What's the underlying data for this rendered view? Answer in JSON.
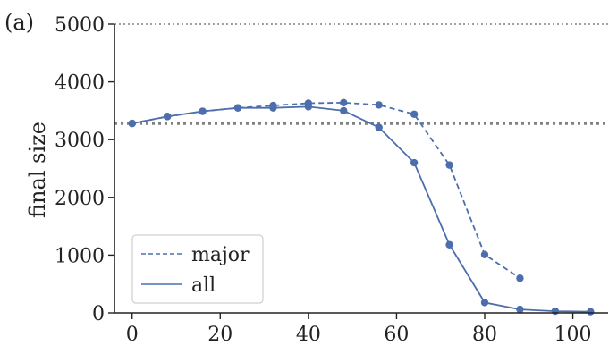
{
  "chart_data": {
    "type": "line",
    "panel_label": "(a)",
    "title": "",
    "xlabel": "",
    "ylabel": "final size",
    "xlim": [
      -4,
      108
    ],
    "ylim": [
      0,
      5000
    ],
    "xticks": [
      "0",
      "20",
      "40",
      "60",
      "80",
      "100"
    ],
    "yticks": [
      "0",
      "1000",
      "2000",
      "3000",
      "4000",
      "5000"
    ],
    "grid": false,
    "legend_position": "bottom-left",
    "reference_lines": [
      {
        "y": 3280,
        "style": "dotted",
        "color": "#808080"
      },
      {
        "y": 5000,
        "style": "dotted",
        "color": "#808080"
      }
    ],
    "series": [
      {
        "name": "major",
        "style": "dashed",
        "color": "#4c6ead",
        "points": [
          {
            "x": 0,
            "y": 3280
          },
          {
            "x": 8,
            "y": 3400
          },
          {
            "x": 16,
            "y": 3490
          },
          {
            "x": 24,
            "y": 3550
          },
          {
            "x": 32,
            "y": 3590
          },
          {
            "x": 40,
            "y": 3630
          },
          {
            "x": 48,
            "y": 3640
          },
          {
            "x": 56,
            "y": 3600
          },
          {
            "x": 64,
            "y": 3440
          },
          {
            "x": 72,
            "y": 2560
          },
          {
            "x": 80,
            "y": 1010
          },
          {
            "x": 88,
            "y": 600
          }
        ]
      },
      {
        "name": "all",
        "style": "solid",
        "color": "#4c6ead",
        "points": [
          {
            "x": 0,
            "y": 3280
          },
          {
            "x": 8,
            "y": 3400
          },
          {
            "x": 16,
            "y": 3490
          },
          {
            "x": 24,
            "y": 3550
          },
          {
            "x": 32,
            "y": 3550
          },
          {
            "x": 40,
            "y": 3570
          },
          {
            "x": 48,
            "y": 3500
          },
          {
            "x": 56,
            "y": 3210
          },
          {
            "x": 64,
            "y": 2600
          },
          {
            "x": 72,
            "y": 1180
          },
          {
            "x": 80,
            "y": 180
          },
          {
            "x": 88,
            "y": 60
          },
          {
            "x": 96,
            "y": 30
          },
          {
            "x": 104,
            "y": 20
          }
        ]
      }
    ]
  }
}
